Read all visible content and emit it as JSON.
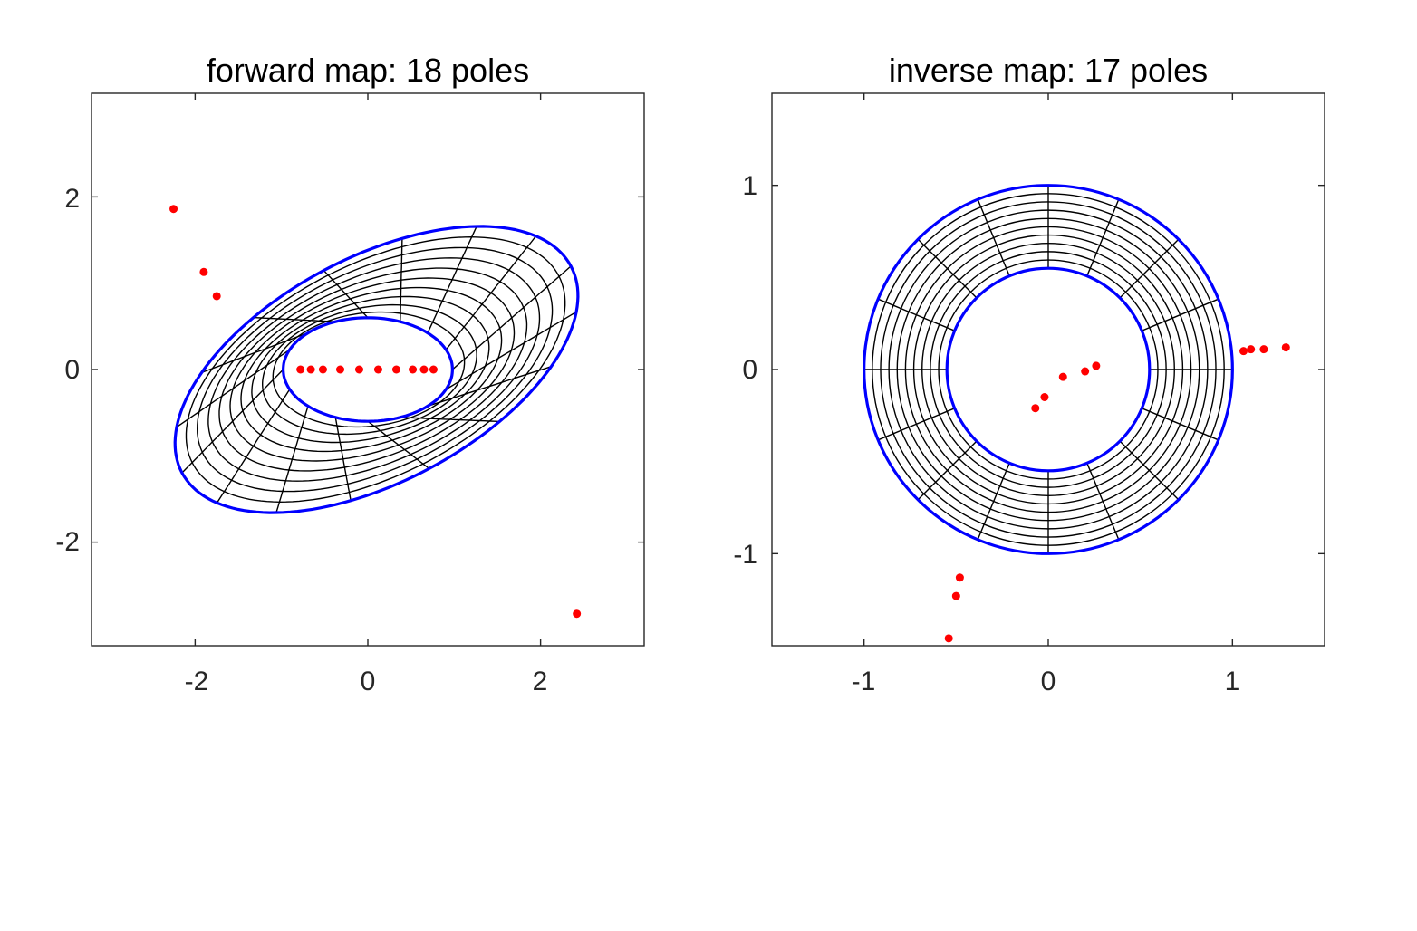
{
  "chart_data": [
    {
      "type": "scatter",
      "title": "forward map: 18 poles",
      "xlim": [
        -3.2,
        3.2
      ],
      "ylim": [
        -3.2,
        3.2
      ],
      "xticks": [
        -2,
        0,
        2
      ],
      "yticks": [
        2,
        0,
        -2
      ],
      "xtick_labels": [
        "-2",
        "0",
        "2"
      ],
      "ytick_labels": [
        "2",
        "0",
        "-2"
      ],
      "boundary_color": "#0000ff",
      "grid_color": "#000000",
      "pole_color": "#ff0000",
      "inner_boundary": {
        "center": [
          0,
          0
        ],
        "semi_axes": [
          0.98,
          0.6
        ],
        "rotation_deg": 0
      },
      "outer_boundary": {
        "center": [
          0.1,
          0
        ],
        "semi_axes": [
          2.55,
          1.3
        ],
        "rotation_deg": 28
      },
      "poles": [
        [
          -2.25,
          1.86
        ],
        [
          -1.9,
          1.13
        ],
        [
          -1.75,
          0.85
        ],
        [
          2.42,
          -2.83
        ],
        [
          -0.78,
          0.0
        ],
        [
          -0.66,
          0.0
        ],
        [
          -0.52,
          0.0
        ],
        [
          -0.32,
          0.0
        ],
        [
          -0.1,
          0.0
        ],
        [
          0.12,
          0.0
        ],
        [
          0.33,
          0.0
        ],
        [
          0.52,
          0.0
        ],
        [
          0.65,
          0.0
        ],
        [
          0.76,
          0.0
        ]
      ]
    },
    {
      "type": "scatter",
      "title": "inverse map: 17 poles",
      "xlim": [
        -1.5,
        1.5
      ],
      "ylim": [
        -1.5,
        1.5
      ],
      "xticks": [
        -1,
        0,
        1
      ],
      "yticks": [
        1,
        0,
        -1
      ],
      "xtick_labels": [
        "-1",
        "0",
        "1"
      ],
      "ytick_labels": [
        "1",
        "0",
        "-1"
      ],
      "boundary_color": "#0000ff",
      "grid_color": "#000000",
      "pole_color": "#ff0000",
      "inner_radius": 0.55,
      "outer_radius": 1.0,
      "ring_count": 10,
      "radial_count": 16,
      "poles": [
        [
          1.06,
          0.1
        ],
        [
          1.1,
          0.11
        ],
        [
          1.17,
          0.11
        ],
        [
          1.29,
          0.12
        ],
        [
          -0.48,
          -1.13
        ],
        [
          -0.5,
          -1.23
        ],
        [
          -0.54,
          -1.46
        ],
        [
          -0.07,
          -0.21
        ],
        [
          -0.02,
          -0.15
        ],
        [
          0.08,
          -0.04
        ],
        [
          0.2,
          -0.01
        ],
        [
          0.26,
          0.02
        ]
      ]
    }
  ]
}
